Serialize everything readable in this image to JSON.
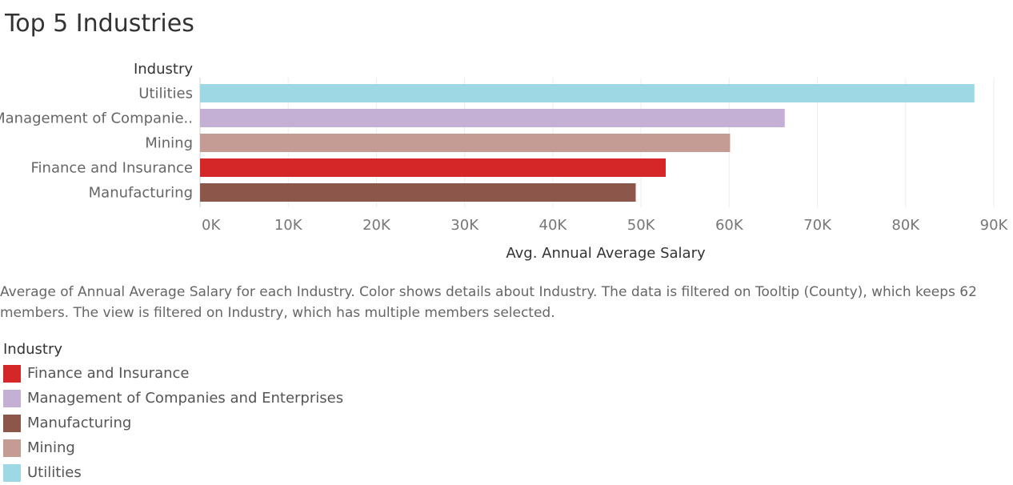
{
  "title": "Top 5 Industries",
  "caption": "Average of Annual Average Salary for each Industry.  Color shows details about Industry. The data is filtered on Tooltip (County), which keeps 62 members. The view is filtered on Industry, which has multiple members selected.",
  "chart_data": {
    "type": "bar",
    "orientation": "horizontal",
    "row_header": "Industry",
    "xlabel": "Avg. Annual Average Salary",
    "xlim": [
      0,
      90000
    ],
    "xticks": [
      0,
      10000,
      20000,
      30000,
      40000,
      50000,
      60000,
      70000,
      80000,
      90000
    ],
    "xtick_labels": [
      "0K",
      "10K",
      "20K",
      "30K",
      "40K",
      "50K",
      "60K",
      "70K",
      "80K",
      "90K"
    ],
    "grid": true,
    "categories": [
      "Utilities",
      "Management of Companie..",
      "Mining",
      "Finance and Insurance",
      "Manufacturing"
    ],
    "values": [
      87800,
      66300,
      60100,
      52800,
      49400
    ],
    "colors": [
      "#9dd8e4",
      "#c5b0d5",
      "#c49c94",
      "#d62728",
      "#8c564b"
    ]
  },
  "legend": {
    "title": "Industry",
    "items": [
      {
        "label": "Finance and Insurance",
        "color": "#d62728"
      },
      {
        "label": "Management of Companies and Enterprises",
        "color": "#c5b0d5"
      },
      {
        "label": "Manufacturing",
        "color": "#8c564b"
      },
      {
        "label": "Mining",
        "color": "#c49c94"
      },
      {
        "label": "Utilities",
        "color": "#9dd8e4"
      }
    ]
  }
}
